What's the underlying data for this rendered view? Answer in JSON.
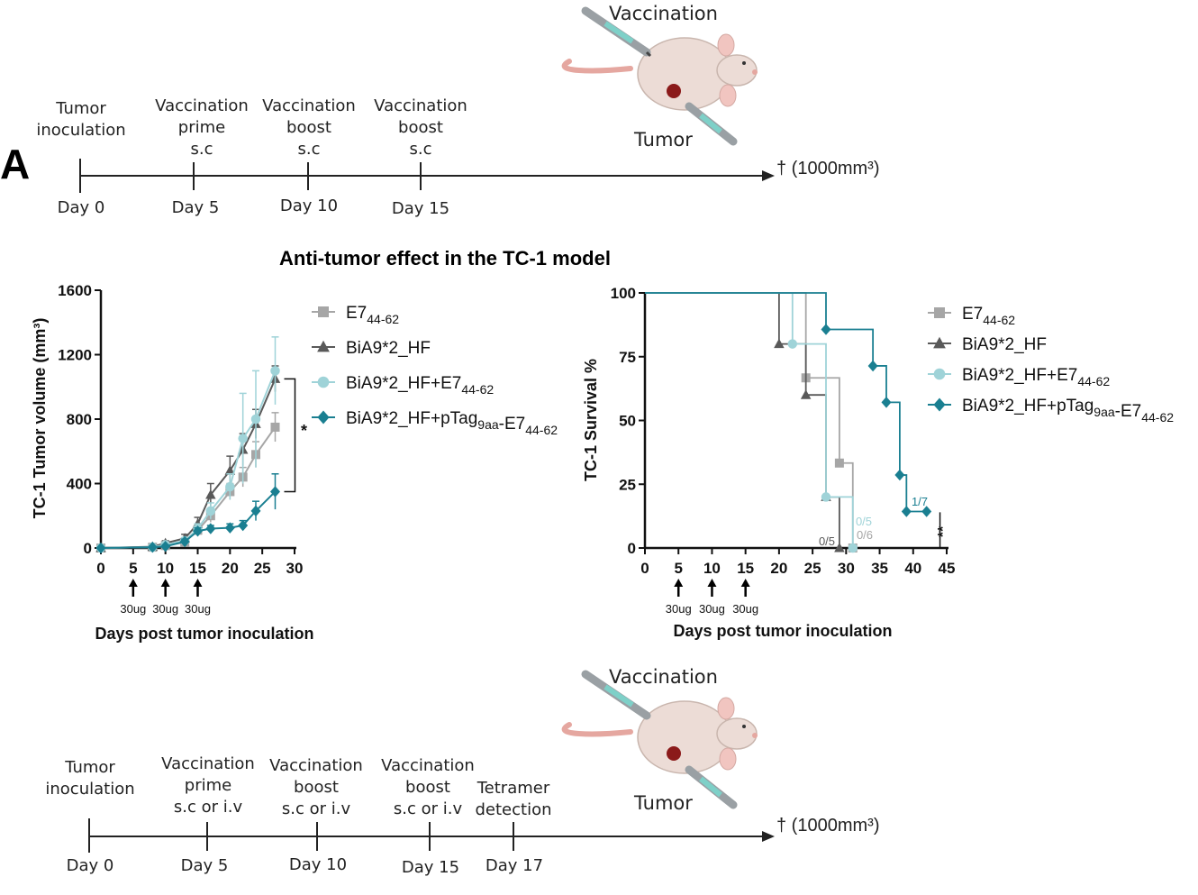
{
  "panel_label": "A",
  "timeline_top": {
    "events": [
      {
        "label_lines": [
          "Tumor",
          "inoculation"
        ],
        "day_label": "Day 0"
      },
      {
        "label_lines": [
          "Vaccination",
          "prime",
          "s.c"
        ],
        "day_label": "Day 5"
      },
      {
        "label_lines": [
          "Vaccination",
          "boost",
          "s.c"
        ],
        "day_label": "Day 10"
      },
      {
        "label_lines": [
          "Vaccination",
          "boost",
          "s.c"
        ],
        "day_label": "Day 15"
      }
    ],
    "endpoint": "† (1000mm³)",
    "mouse_labels": {
      "top": "Vaccination",
      "bottom": "Tumor"
    }
  },
  "timeline_bottom": {
    "events": [
      {
        "label_lines": [
          "Tumor",
          "inoculation"
        ],
        "day_label": "Day 0"
      },
      {
        "label_lines": [
          "Vaccination",
          "prime",
          "s.c or i.v"
        ],
        "day_label": "Day 5"
      },
      {
        "label_lines": [
          "Vaccination",
          "boost",
          "s.c or i.v"
        ],
        "day_label": "Day 10"
      },
      {
        "label_lines": [
          "Vaccination",
          "boost",
          "s.c or i.v"
        ],
        "day_label": "Day 15"
      },
      {
        "label_lines": [
          "Tetramer",
          "detection"
        ],
        "day_label": "Day 17"
      }
    ],
    "endpoint": "† (1000mm³)",
    "mouse_labels": {
      "top": "Vaccination",
      "bottom": "Tumor"
    }
  },
  "section_title": "Anti-tumor effect in the TC-1 model",
  "colors": {
    "e7": "#a6a6a6",
    "bia": "#595959",
    "bia_e7": "#9fd3d8",
    "bia_ptag": "#1a7f91",
    "axis": "#111111"
  },
  "legend": [
    {
      "key": "e7",
      "marker": "square",
      "base": "E7",
      "sub": "44-62",
      "parts": [
        {
          "t": "E7"
        },
        {
          "t": "44-62",
          "sub": true
        }
      ]
    },
    {
      "key": "bia",
      "marker": "triangle",
      "parts": [
        {
          "t": "BiA9*2_HF"
        }
      ]
    },
    {
      "key": "bia_e7",
      "marker": "circle",
      "parts": [
        {
          "t": "BiA9*2_HF+E7"
        },
        {
          "t": "44-62",
          "sub": true
        }
      ]
    },
    {
      "key": "bia_ptag",
      "marker": "diamond",
      "parts": [
        {
          "t": "BiA9*2_HF+pTag"
        },
        {
          "t": "9aa",
          "sub": true
        },
        {
          "t": "-E7"
        },
        {
          "t": "44-62",
          "sub": true
        }
      ]
    }
  ],
  "chart_data": [
    {
      "type": "line",
      "ylabel": "TC-1 Tumor volume (mm³)",
      "xlabel": "Days post tumor inoculation",
      "xlim": [
        0,
        30
      ],
      "ylim": [
        0,
        1600
      ],
      "xticks": [
        0,
        5,
        10,
        15,
        20,
        25,
        30
      ],
      "yticks": [
        0,
        400,
        800,
        1200,
        1600
      ],
      "dose_days": [
        5,
        10,
        15
      ],
      "dose_label": "30ug",
      "significance": "*",
      "series": [
        {
          "key": "e7",
          "x": [
            0,
            8,
            10,
            13,
            15,
            17,
            20,
            22,
            24,
            27
          ],
          "y": [
            0,
            5,
            15,
            35,
            110,
            200,
            350,
            440,
            580,
            750
          ],
          "err": [
            5,
            10,
            15,
            20,
            30,
            40,
            50,
            60,
            80,
            90
          ]
        },
        {
          "key": "bia",
          "x": [
            0,
            8,
            10,
            13,
            15,
            17,
            20,
            22,
            24,
            27
          ],
          "y": [
            0,
            8,
            30,
            60,
            150,
            330,
            480,
            610,
            770,
            1050
          ],
          "err": [
            5,
            10,
            15,
            25,
            40,
            70,
            90,
            100,
            90,
            80
          ]
        },
        {
          "key": "bia_e7",
          "x": [
            0,
            8,
            10,
            13,
            15,
            17,
            20,
            22,
            24,
            27
          ],
          "y": [
            0,
            5,
            20,
            45,
            120,
            230,
            380,
            680,
            800,
            1100
          ],
          "err": [
            5,
            10,
            15,
            20,
            30,
            50,
            80,
            280,
            300,
            210
          ]
        },
        {
          "key": "bia_ptag",
          "x": [
            0,
            8,
            10,
            13,
            15,
            17,
            20,
            22,
            24,
            27
          ],
          "y": [
            0,
            5,
            10,
            40,
            105,
            120,
            125,
            140,
            230,
            350
          ],
          "err": [
            5,
            8,
            10,
            15,
            20,
            20,
            25,
            30,
            60,
            110
          ]
        }
      ]
    },
    {
      "type": "line",
      "ylabel": "TC-1 Survival %",
      "xlabel": "Days post tumor inoculation",
      "xlim": [
        0,
        45
      ],
      "ylim": [
        0,
        100
      ],
      "xticks": [
        0,
        5,
        10,
        15,
        20,
        25,
        30,
        35,
        40,
        45
      ],
      "yticks": [
        0,
        25,
        50,
        75,
        100
      ],
      "dose_days": [
        5,
        10,
        15
      ],
      "dose_label": "30ug",
      "significance": "**",
      "series": [
        {
          "key": "e7",
          "x": [
            0,
            24,
            29,
            31
          ],
          "y": [
            100,
            66.7,
            33.3,
            0
          ],
          "label": "0/6"
        },
        {
          "key": "bia",
          "x": [
            0,
            20,
            24,
            27,
            29
          ],
          "y": [
            100,
            80,
            60,
            20,
            0
          ],
          "label": "0/5"
        },
        {
          "key": "bia_e7",
          "x": [
            0,
            22,
            27,
            31
          ],
          "y": [
            100,
            80,
            20,
            0
          ],
          "label": "0/5"
        },
        {
          "key": "bia_ptag",
          "x": [
            0,
            27,
            34,
            36,
            38,
            39,
            42
          ],
          "y": [
            100,
            85.7,
            71.4,
            57.1,
            28.6,
            14.3,
            14.3
          ],
          "label": "1/7"
        }
      ]
    }
  ]
}
